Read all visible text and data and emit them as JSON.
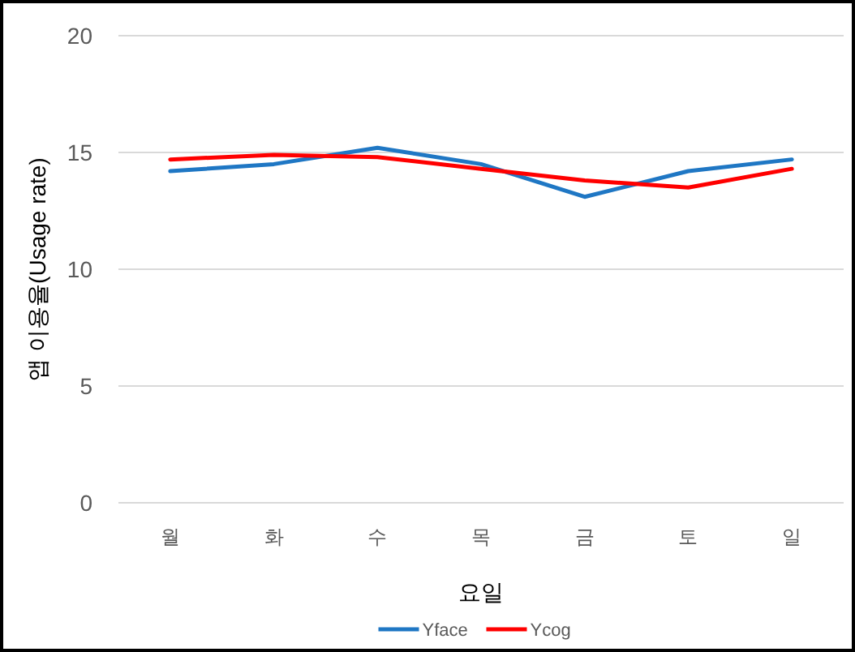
{
  "chart_data": {
    "type": "line",
    "xlabel": "요일",
    "ylabel": "앱 이용율(Usage rate)",
    "categories": [
      "월",
      "화",
      "수",
      "목",
      "금",
      "토",
      "일"
    ],
    "series": [
      {
        "name": "Yface",
        "color": "#1f77c4",
        "values": [
          14.2,
          14.5,
          15.2,
          14.5,
          13.1,
          14.2,
          14.7
        ]
      },
      {
        "name": "Ycog",
        "color": "#ff0000",
        "values": [
          14.7,
          14.9,
          14.8,
          14.3,
          13.8,
          13.5,
          14.3
        ]
      }
    ],
    "ylim": [
      0,
      20
    ],
    "yticks": [
      0,
      5,
      10,
      15,
      20
    ],
    "grid": "y",
    "legend": "bottom",
    "marker": "none",
    "line_style": "solid"
  }
}
